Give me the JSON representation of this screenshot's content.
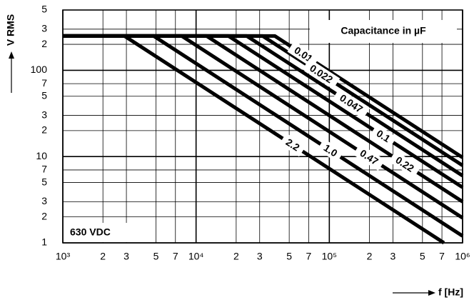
{
  "chart_data": {
    "type": "line",
    "y_label": "V RMS",
    "x_label": "f [Hz]",
    "annotations": [
      "Capacitance in µF",
      "630 VDC"
    ],
    "log_x": true,
    "log_y": true,
    "grid": true,
    "color": "#000000",
    "xlim": [
      1000,
      1000000
    ],
    "ylim": [
      1,
      500
    ],
    "xticks": [
      {
        "value": 1000,
        "label": "10³"
      },
      {
        "value": 2000,
        "label": "2"
      },
      {
        "value": 3000,
        "label": "3"
      },
      {
        "value": 5000,
        "label": "5"
      },
      {
        "value": 7000,
        "label": "7"
      },
      {
        "value": 10000,
        "label": "10⁴"
      },
      {
        "value": 20000,
        "label": "2"
      },
      {
        "value": 30000,
        "label": "3"
      },
      {
        "value": 50000,
        "label": "5"
      },
      {
        "value": 70000,
        "label": "7"
      },
      {
        "value": 100000,
        "label": "10⁵"
      },
      {
        "value": 200000,
        "label": "2"
      },
      {
        "value": 300000,
        "label": "3"
      },
      {
        "value": 500000,
        "label": "5"
      },
      {
        "value": 700000,
        "label": "7"
      },
      {
        "value": 1000000,
        "label": "10⁶"
      }
    ],
    "yticks": [
      1,
      2,
      3,
      5,
      7,
      10,
      {
        "value": 20,
        "label": "2"
      },
      {
        "value": 30,
        "label": "3"
      },
      {
        "value": 50,
        "label": "5"
      },
      {
        "value": 70,
        "label": "7"
      },
      100,
      {
        "value": 200,
        "label": "2"
      },
      {
        "value": 300,
        "label": "3"
      },
      {
        "value": 500,
        "label": "5"
      }
    ],
    "series": [
      {
        "name": "0.01",
        "color": "#000000",
        "x": [
          1000,
          39000,
          1000000
        ],
        "values": [
          250,
          250,
          9.75
        ]
      },
      {
        "name": "0.022",
        "color": "#000000",
        "x": [
          1000,
          31600,
          1000000
        ],
        "values": [
          250,
          250,
          7.9
        ]
      },
      {
        "name": "0.047",
        "color": "#000000",
        "x": [
          1000,
          24000,
          1000000
        ],
        "values": [
          250,
          250,
          6
        ]
      },
      {
        "name": "0.1",
        "color": "#000000",
        "x": [
          1000,
          17500,
          1000000
        ],
        "values": [
          250,
          250,
          4.4
        ]
      },
      {
        "name": "0.22",
        "color": "#000000",
        "x": [
          1000,
          12000,
          1000000
        ],
        "values": [
          250,
          250,
          3
        ]
      },
      {
        "name": "0.47",
        "color": "#000000",
        "x": [
          1000,
          7800,
          1000000
        ],
        "values": [
          250,
          250,
          1.95
        ]
      },
      {
        "name": "1.0",
        "color": "#000000",
        "x": [
          1000,
          4800,
          1000000
        ],
        "values": [
          250,
          250,
          1.2
        ]
      },
      {
        "name": "2.2",
        "color": "#000000",
        "x": [
          1000,
          2900,
          725000
        ],
        "values": [
          250,
          250,
          1
        ]
      }
    ]
  }
}
